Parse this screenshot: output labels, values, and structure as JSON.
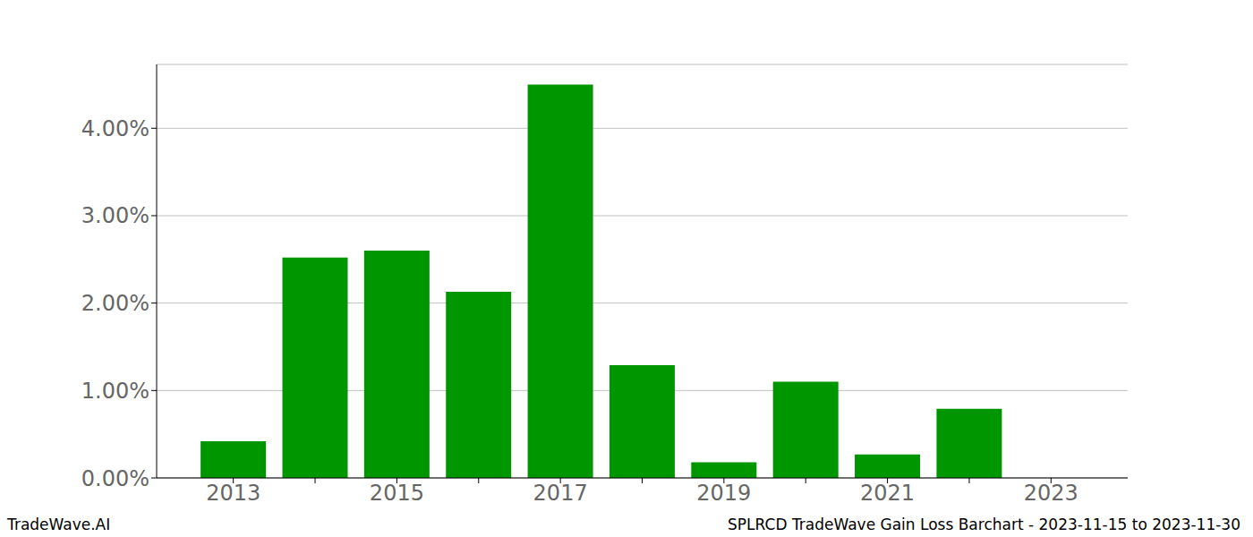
{
  "chart_data": {
    "type": "bar",
    "title": "SPLRCD TradeWave Gain Loss Barchart - 2023-11-15 to 2023-11-30",
    "annotations": [
      "TradeWave.AI"
    ],
    "categories": [
      "2013",
      null,
      "2015",
      null,
      "2017",
      null,
      "2019",
      null,
      "2021",
      null,
      "2023"
    ],
    "values": [
      0.42,
      2.52,
      2.6,
      2.13,
      4.5,
      1.29,
      0.18,
      1.1,
      0.27,
      0.79,
      null
    ],
    "color": "#009600",
    "ylim": [
      0,
      4.73
    ],
    "yticks": [
      {
        "value": 0,
        "label": "0.00%"
      },
      {
        "value": 1,
        "label": "1.00%"
      },
      {
        "value": 2,
        "label": "2.00%"
      },
      {
        "value": 3,
        "label": "3.00%"
      },
      {
        "value": 4,
        "label": "4.00%"
      }
    ],
    "grid": true
  }
}
